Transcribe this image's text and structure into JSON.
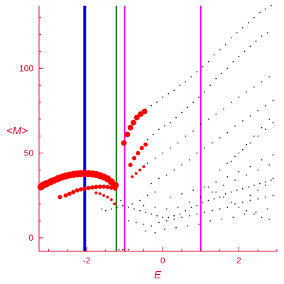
{
  "colors": {
    "axis": "#e8002a",
    "text": "#e8002a",
    "points": "#000000",
    "highlight_points": "#ff0000",
    "line_blue": "#0000ee",
    "line_green": "#008000",
    "line_magenta": "#ee00ee"
  },
  "chart_data": {
    "type": "scatter",
    "xlabel": "E",
    "ylabel": "<M>",
    "xlim": [
      -3.25,
      3.0
    ],
    "ylim": [
      -8,
      137
    ],
    "xticks": [
      -2,
      0,
      2
    ],
    "yticks": [
      0,
      50,
      100
    ],
    "xtick_labels": [
      "-2",
      "0",
      "2"
    ],
    "ytick_labels": [
      "0",
      "50",
      "100"
    ],
    "grid": false,
    "legend": "none",
    "vertical_lines": [
      {
        "x": -2.05,
        "color": "blue"
      },
      {
        "x": -1.22,
        "color": "green"
      },
      {
        "x": -1.0,
        "color": "magenta"
      },
      {
        "x": 1.0,
        "color": "magenta"
      }
    ],
    "series": [
      {
        "color": "red",
        "size": 5,
        "points": [
          [
            -3.2,
            30
          ],
          [
            -3.15,
            31
          ],
          [
            -3.1,
            31.5
          ],
          [
            -3.05,
            32
          ],
          [
            -2.95,
            33
          ],
          [
            -2.85,
            34
          ],
          [
            -2.75,
            35
          ],
          [
            -2.65,
            35.8
          ],
          [
            -2.55,
            36.5
          ],
          [
            -2.45,
            37
          ],
          [
            -2.35,
            37.4
          ],
          [
            -2.25,
            37.7
          ],
          [
            -2.15,
            37.9
          ],
          [
            -2.05,
            38
          ],
          [
            -1.95,
            37.9
          ],
          [
            -1.85,
            37.7
          ],
          [
            -1.75,
            37.3
          ],
          [
            -1.65,
            36.7
          ],
          [
            -1.55,
            35.9
          ],
          [
            -1.45,
            34.8
          ],
          [
            -1.35,
            33
          ],
          [
            -1.25,
            31
          ]
        ]
      },
      {
        "color": "red",
        "size": 3,
        "points": [
          [
            -2.7,
            24
          ],
          [
            -2.55,
            25
          ],
          [
            -2.45,
            26
          ],
          [
            -2.35,
            27
          ],
          [
            -2.25,
            28
          ],
          [
            -2.15,
            28.6
          ],
          [
            -2.05,
            29
          ],
          [
            -1.95,
            29.4
          ],
          [
            -1.85,
            29.7
          ],
          [
            -1.75,
            30
          ],
          [
            -1.65,
            30.2
          ],
          [
            -1.55,
            30.2
          ],
          [
            -1.45,
            30
          ],
          [
            -1.35,
            29.6
          ],
          [
            -1.25,
            29
          ]
        ]
      },
      {
        "color": "red",
        "size": 2,
        "points": [
          [
            -1.75,
            26.5
          ],
          [
            -1.65,
            26
          ],
          [
            -1.55,
            25
          ],
          [
            -1.45,
            24
          ],
          [
            -1.35,
            22.5
          ],
          [
            -1.25,
            20
          ]
        ]
      },
      {
        "color": "red",
        "size": 4,
        "points": [
          [
            -1.02,
            56
          ],
          [
            -0.93,
            61
          ],
          [
            -0.85,
            65
          ],
          [
            -0.77,
            68
          ],
          [
            -0.68,
            71
          ],
          [
            -0.58,
            73
          ],
          [
            -0.48,
            74.5
          ]
        ]
      },
      {
        "color": "red",
        "size": 3,
        "points": [
          [
            -0.85,
            43
          ],
          [
            -0.75,
            47
          ],
          [
            -0.65,
            50
          ],
          [
            -0.55,
            53
          ],
          [
            -0.45,
            55
          ]
        ]
      },
      {
        "color": "red",
        "size": 2,
        "points": [
          [
            -0.8,
            36
          ],
          [
            -0.7,
            38
          ],
          [
            -0.6,
            40
          ],
          [
            -0.5,
            42
          ]
        ]
      },
      {
        "color": "black",
        "size": 1.5,
        "points": [
          [
            -0.45,
            76
          ],
          [
            -0.3,
            78
          ],
          [
            -0.15,
            80
          ],
          [
            0.0,
            83
          ],
          [
            0.15,
            85
          ],
          [
            0.3,
            87
          ],
          [
            0.45,
            90
          ],
          [
            0.6,
            92
          ],
          [
            0.75,
            95
          ],
          [
            0.9,
            98
          ],
          [
            1.05,
            101
          ],
          [
            1.2,
            104
          ],
          [
            1.35,
            108
          ],
          [
            1.5,
            111
          ],
          [
            1.65,
            114
          ],
          [
            1.8,
            118
          ],
          [
            1.95,
            121
          ],
          [
            2.1,
            124
          ],
          [
            2.25,
            127
          ],
          [
            2.4,
            130
          ],
          [
            2.55,
            133
          ],
          [
            2.7,
            135
          ],
          [
            2.85,
            137
          ],
          [
            -0.4,
            58
          ],
          [
            -0.25,
            61
          ],
          [
            -0.1,
            64
          ],
          [
            0.05,
            66
          ],
          [
            0.2,
            68
          ],
          [
            0.35,
            71
          ],
          [
            0.5,
            74
          ],
          [
            0.65,
            77
          ],
          [
            0.8,
            80
          ],
          [
            0.95,
            83
          ],
          [
            1.1,
            86
          ],
          [
            1.25,
            90
          ],
          [
            1.4,
            94
          ],
          [
            1.55,
            97
          ],
          [
            1.7,
            100
          ],
          [
            1.85,
            104
          ],
          [
            2.0,
            107
          ],
          [
            2.15,
            110
          ],
          [
            2.3,
            113
          ],
          [
            2.45,
            116
          ],
          [
            2.6,
            119
          ],
          [
            2.75,
            121
          ],
          [
            -0.4,
            44
          ],
          [
            -0.2,
            47
          ],
          [
            0.0,
            50
          ],
          [
            0.2,
            53
          ],
          [
            0.4,
            56
          ],
          [
            0.6,
            60
          ],
          [
            0.8,
            63
          ],
          [
            1.0,
            67
          ],
          [
            1.2,
            70
          ],
          [
            1.4,
            73
          ],
          [
            1.6,
            76
          ],
          [
            1.8,
            80
          ],
          [
            2.0,
            83
          ],
          [
            2.2,
            86
          ],
          [
            2.4,
            89
          ],
          [
            2.6,
            92
          ],
          [
            2.8,
            95
          ],
          [
            -0.3,
            32
          ],
          [
            -0.1,
            35
          ],
          [
            0.1,
            37
          ],
          [
            0.3,
            40
          ],
          [
            0.5,
            43
          ],
          [
            0.7,
            46
          ],
          [
            0.9,
            50
          ],
          [
            1.1,
            53
          ],
          [
            1.3,
            56
          ],
          [
            1.5,
            59
          ],
          [
            1.7,
            62
          ],
          [
            1.9,
            66
          ],
          [
            2.1,
            69
          ],
          [
            2.3,
            72
          ],
          [
            2.5,
            75
          ],
          [
            2.7,
            78
          ],
          [
            2.9,
            81
          ],
          [
            -1.5,
            16
          ],
          [
            -1.35,
            17
          ],
          [
            -1.2,
            18
          ],
          [
            -1.05,
            19
          ],
          [
            -0.9,
            18
          ],
          [
            -0.75,
            17
          ],
          [
            -0.6,
            16
          ],
          [
            -0.45,
            15
          ],
          [
            -0.3,
            14
          ],
          [
            -0.15,
            13
          ],
          [
            0.0,
            12
          ],
          [
            0.15,
            12
          ],
          [
            0.3,
            13
          ],
          [
            0.45,
            14
          ],
          [
            0.6,
            16
          ],
          [
            0.75,
            18
          ],
          [
            0.9,
            19
          ],
          [
            1.05,
            21
          ],
          [
            1.2,
            22
          ],
          [
            1.35,
            23
          ],
          [
            1.5,
            24
          ],
          [
            1.65,
            26
          ],
          [
            1.8,
            27
          ],
          [
            1.95,
            28
          ],
          [
            2.1,
            29
          ],
          [
            2.25,
            30
          ],
          [
            2.4,
            31
          ],
          [
            2.55,
            32
          ],
          [
            2.7,
            33
          ],
          [
            2.85,
            34
          ],
          [
            -1.6,
            17
          ],
          [
            -1.3,
            20
          ],
          [
            -1.1,
            22
          ],
          [
            -0.8,
            20
          ],
          [
            -0.5,
            19
          ],
          [
            -0.2,
            18
          ],
          [
            0.1,
            17
          ],
          [
            0.4,
            18
          ],
          [
            0.7,
            21
          ],
          [
            1.0,
            24
          ],
          [
            1.3,
            27
          ],
          [
            1.6,
            31
          ],
          [
            1.9,
            34
          ],
          [
            2.2,
            37
          ],
          [
            2.5,
            40
          ],
          [
            2.8,
            43
          ],
          [
            -0.9,
            10
          ],
          [
            -0.7,
            9
          ],
          [
            -0.5,
            8
          ],
          [
            -0.3,
            7
          ],
          [
            -0.1,
            9
          ],
          [
            0.1,
            10
          ],
          [
            0.3,
            11
          ],
          [
            0.5,
            12
          ],
          [
            0.7,
            13
          ],
          [
            0.9,
            14
          ],
          [
            1.1,
            15
          ],
          [
            1.3,
            16
          ],
          [
            1.5,
            17
          ],
          [
            1.7,
            18
          ],
          [
            1.9,
            20
          ],
          [
            2.1,
            21
          ],
          [
            2.3,
            22
          ],
          [
            2.5,
            23
          ],
          [
            2.7,
            24
          ],
          [
            2.9,
            25
          ],
          [
            -0.6,
            22
          ],
          [
            -0.4,
            25
          ],
          [
            -0.2,
            27
          ],
          [
            0.2,
            24
          ],
          [
            0.5,
            26
          ],
          [
            0.8,
            28
          ],
          [
            1.1,
            30
          ],
          [
            1.4,
            33
          ],
          [
            1.7,
            36
          ],
          [
            2.0,
            39
          ],
          [
            2.3,
            42
          ],
          [
            2.6,
            46
          ],
          [
            2.9,
            49
          ],
          [
            -0.45,
            4
          ],
          [
            -0.2,
            3
          ],
          [
            0.05,
            5
          ],
          [
            0.35,
            6
          ],
          [
            0.65,
            7
          ],
          [
            0.95,
            8
          ],
          [
            1.25,
            10
          ],
          [
            1.55,
            11
          ],
          [
            1.85,
            12
          ],
          [
            2.15,
            14
          ],
          [
            2.45,
            15
          ],
          [
            2.75,
            17
          ],
          [
            1.2,
            30
          ],
          [
            1.4,
            27
          ],
          [
            1.6,
            24
          ],
          [
            1.8,
            21
          ],
          [
            2.0,
            18
          ],
          [
            2.2,
            16
          ],
          [
            2.4,
            14
          ],
          [
            2.6,
            12
          ],
          [
            2.8,
            11
          ],
          [
            1.8,
            45
          ],
          [
            2.0,
            50
          ],
          [
            2.2,
            55
          ],
          [
            2.4,
            60
          ],
          [
            2.6,
            65
          ],
          [
            2.8,
            70
          ],
          [
            2.3,
            25
          ],
          [
            2.5,
            28
          ],
          [
            2.7,
            31
          ],
          [
            2.9,
            35
          ],
          [
            1.5,
            40
          ],
          [
            1.7,
            44
          ],
          [
            1.9,
            48
          ],
          [
            2.1,
            52
          ],
          [
            2.3,
            56
          ],
          [
            2.5,
            60
          ],
          [
            2.7,
            64
          ],
          [
            2.9,
            68
          ],
          [
            -1.15,
            -7
          ],
          [
            -1.05,
            -7
          ],
          [
            -0.9,
            -7
          ]
        ]
      }
    ]
  }
}
